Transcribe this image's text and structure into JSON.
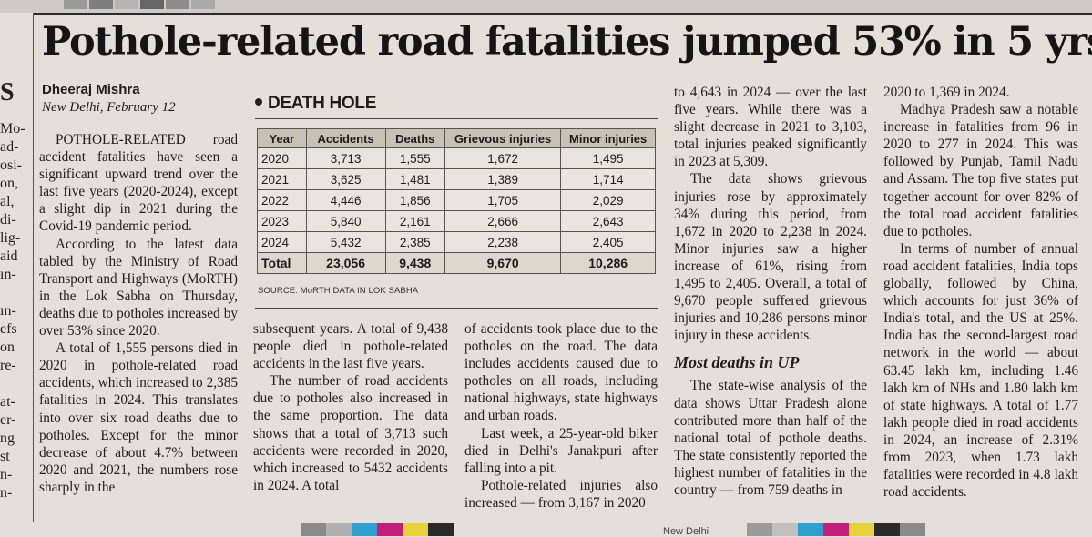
{
  "headline": "Pothole-related road fatalities jumped 53% in 5 yrs",
  "byline": {
    "author": "Dheeraj Mishra",
    "dateline": "New Delhi, February 12"
  },
  "left_fragment": {
    "big_letter": "S",
    "lines": [
      "Mo-",
      "ad-",
      "osi-",
      "on,",
      "al,",
      "di-",
      "lig-",
      "aid",
      "ın-",
      "",
      "ın-",
      "efs",
      "on",
      "re-",
      "",
      "at-",
      "er-",
      "ng",
      "st",
      "n-",
      "n-"
    ]
  },
  "column1": [
    "POTHOLE-RELATED road accident fatalities have seen a significant upward trend over the last five years (2020-2024), except a slight dip in 2021 during the Covid-19 pandemic period.",
    "According to the latest data tabled by the Ministry of Road Transport and Highways (MoRTH) in the Lok Sabha on Thursday, deaths due to potholes increased by over 53% since 2020.",
    "A total of 1,555 persons died in 2020 in pothole-related road accidents, which increased to 2,385 fatalities in 2024. This translates into over six road deaths due to potholes. Except for the minor decrease of about 4.7% between 2020 and 2021, the numbers rose sharply in the"
  ],
  "box": {
    "title": "DEATH HOLE",
    "headers": [
      "Year",
      "Accidents",
      "Deaths",
      "Grievous injuries",
      "Minor injuries"
    ],
    "rows": [
      [
        "2020",
        "3,713",
        "1,555",
        "1,672",
        "1,495"
      ],
      [
        "2021",
        "3,625",
        "1,481",
        "1,389",
        "1,714"
      ],
      [
        "2022",
        "4,446",
        "1,856",
        "1,705",
        "2,029"
      ],
      [
        "2023",
        "5,840",
        "2,161",
        "2,666",
        "2,643"
      ],
      [
        "2024",
        "5,432",
        "2,385",
        "2,238",
        "2,405"
      ]
    ],
    "total": [
      "Total",
      "23,056",
      "9,438",
      "9,670",
      "10,286"
    ],
    "source": "SOURCE: MoRTH DATA IN LOK SABHA"
  },
  "column2": [
    "subsequent years. A total of 9,438 people died in pothole-related accidents in the last five years.",
    "The number of road accidents due to potholes also increased in the same proportion. The data shows that a total of 3,713 such accidents were recorded in 2020, which increased to 5432 accidents in 2024. A total"
  ],
  "column3": [
    "of accidents took place due to the potholes on the road. The data includes accidents caused due to potholes on all roads, including national highways, state highways and urban roads.",
    "Last week, a 25-year-old biker died in Delhi's Janakpuri after falling into a pit.",
    "Pothole-related injuries also increased — from 3,167 in 2020"
  ],
  "column4": {
    "para1": "to 4,643 in 2024 — over the last five years. While there was a slight decrease in 2021 to 3,103, total injuries peaked significantly in 2023 at 5,309.",
    "para2": "The data shows grievous injuries rose by approximately 34% during this period, from 1,672 in 2020 to 2,238 in 2024. Minor injuries saw a higher increase of 61%, rising from 1,495 to 2,405. Overall, a total of 9,670 people suffered grievous injuries and 10,286 persons minor injury in these accidents.",
    "subhead": "Most deaths in UP",
    "para3": "The state-wise analysis of the data shows Uttar Pradesh alone contributed more than half of the national total of pothole deaths. The state consistently reported the highest number of fatalities in the country — from 759 deaths in"
  },
  "column5": [
    "2020 to 1,369 in 2024.",
    "Madhya Pradesh saw a notable increase in fatalities from 96 in 2020 to 277 in 2024. This was followed by Punjab, Tamil Nadu and Assam. The top five states put together account for over 82% of the total road accident fatalities due to potholes.",
    "In terms of number of annual road accident fatalities, India tops globally, followed by China, which accounts for just 36% of India's total, and the US at 25%. India has the second-largest road network in the world — about 63.45 lakh km, including 1.46 lakh km of NHs and 1.80 lakh km of state highways. A total of 1.77 lakh people died in road accidents in 2024, an increase of 2.31% from 2023, when 1.73 lakh fatalities were recorded in 4.8 lakh road accidents."
  ],
  "footer": {
    "text": "New Delhi"
  },
  "colors": {
    "paper": "#e3e0da",
    "table_header": "#c7c1b6",
    "swatches": [
      "#7b7b7b",
      "#a9a9a9",
      "#2f9fd0",
      "#c21f7a",
      "#e7d23a",
      "#2a2a2a"
    ]
  }
}
